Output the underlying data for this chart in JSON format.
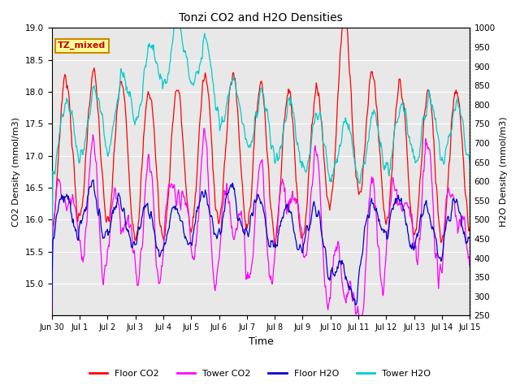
{
  "title": "Tonzi CO2 and H2O Densities",
  "xlabel": "Time",
  "ylabel_left": "CO2 Density (mmol/m3)",
  "ylabel_right": "H2O Density (mmol/m3)",
  "annotation": "TZ_mixed",
  "annotation_color": "#CC0000",
  "annotation_bg": "#FFFF99",
  "annotation_edge": "#CC8800",
  "ylim_left": [
    14.5,
    19.0
  ],
  "ylim_right": [
    250,
    1000
  ],
  "yticks_left": [
    15.0,
    15.5,
    16.0,
    16.5,
    17.0,
    17.5,
    18.0,
    18.5,
    19.0
  ],
  "yticks_right": [
    250,
    300,
    350,
    400,
    450,
    500,
    550,
    600,
    650,
    700,
    750,
    800,
    850,
    900,
    950,
    1000
  ],
  "colors": {
    "floor_co2": "#FF0000",
    "tower_co2": "#FF00FF",
    "floor_h2o": "#0000CC",
    "tower_h2o": "#00CCCC"
  },
  "legend_labels": [
    "Floor CO2",
    "Tower CO2",
    "Floor H2O",
    "Tower H2O"
  ],
  "xticklabels": [
    "Jun 30",
    "Jul 1",
    "Jul 2",
    "Jul 3",
    "Jul 4",
    "Jul 5",
    "Jul 6",
    "Jul 7",
    "Jul 8",
    "Jul 9",
    "Jul 10",
    "Jul 11",
    "Jul 12",
    "Jul 13",
    "Jul 14",
    "Jul 15"
  ],
  "n_days": 16,
  "bg_inner": "#E8E8E8",
  "linewidth": 0.9,
  "figsize": [
    6.4,
    4.8
  ],
  "dpi": 100
}
